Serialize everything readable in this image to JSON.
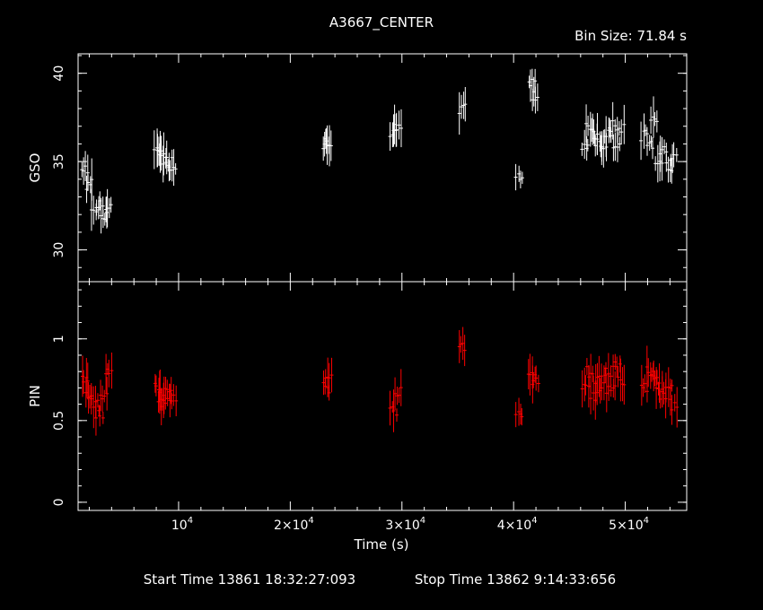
{
  "title": "A3667_CENTER",
  "bin_size": "Bin Size: 71.84 s",
  "footer": {
    "start": "Start Time 13861 18:32:27:093",
    "stop": "Stop Time 13862  9:14:33:656"
  },
  "colors": {
    "background": "#000000",
    "axes": "#ffffff",
    "gso_series": "#ffffff",
    "pin_series": "#ff0000"
  },
  "chart_data": [
    {
      "type": "scatter",
      "name": "gso-panel",
      "ylabel": "GSO",
      "xlim": [
        1000,
        55500
      ],
      "ylim": [
        28.2,
        41.1
      ],
      "y_major_ticks": [
        30,
        35,
        40
      ],
      "y_tick_labels": [
        "30",
        "35",
        "40"
      ],
      "series": [
        {
          "color": "#ffffff",
          "error_bars": true,
          "x": [
            1700,
            2100,
            2600,
            3000,
            3400,
            3800,
            8200,
            8500,
            8800,
            9200,
            9600,
            23300,
            23500,
            29300,
            29700,
            35500,
            40600,
            41700,
            42000,
            46500,
            46900,
            47300,
            47700,
            48100,
            48500,
            48900,
            49300,
            49700,
            51800,
            52300,
            52700,
            53100,
            53500,
            54000,
            54400
          ],
          "y": [
            34.5,
            33.7,
            32.3,
            32.5,
            32.0,
            32.4,
            35.5,
            35.7,
            35.1,
            35.0,
            34.8,
            36.0,
            36.2,
            36.5,
            36.8,
            38.0,
            34.2,
            39.5,
            38.7,
            36.0,
            37.0,
            36.5,
            36.0,
            35.8,
            36.5,
            37.0,
            36.0,
            36.8,
            36.5,
            36.0,
            37.5,
            35.0,
            35.6,
            34.8,
            35.2
          ]
        }
      ]
    },
    {
      "type": "scatter",
      "name": "pin-panel",
      "ylabel": "PIN",
      "xlabel": "Time (s)",
      "xlim": [
        1000,
        55500
      ],
      "ylim": [
        -0.05,
        1.35
      ],
      "y_major_ticks": [
        0,
        0.5,
        1
      ],
      "y_tick_labels": [
        "0",
        "0.5",
        "1"
      ],
      "x_major_ticks": [
        10000,
        20000,
        30000,
        40000,
        50000
      ],
      "x_tick_labels": [
        {
          "mant": "",
          "exp": "4"
        },
        {
          "mant": "2×",
          "exp": "4"
        },
        {
          "mant": "3×",
          "exp": "4"
        },
        {
          "mant": "4×",
          "exp": "4"
        },
        {
          "mant": "5×",
          "exp": "4"
        }
      ],
      "x_tick_base": "10",
      "series": [
        {
          "color": "#ff0000",
          "error_bars": true,
          "x": [
            1700,
            2100,
            2600,
            3000,
            3400,
            3800,
            8200,
            8500,
            8800,
            9200,
            9600,
            23300,
            23500,
            29300,
            29700,
            35500,
            40600,
            41700,
            42000,
            46500,
            46900,
            47300,
            47700,
            48100,
            48500,
            48900,
            49300,
            49700,
            51800,
            52300,
            52700,
            53100,
            53500,
            54000,
            54400
          ],
          "y": [
            0.75,
            0.65,
            0.6,
            0.55,
            0.65,
            0.8,
            0.7,
            0.65,
            0.6,
            0.7,
            0.65,
            0.7,
            0.75,
            0.55,
            0.68,
            0.95,
            0.55,
            0.8,
            0.75,
            0.7,
            0.8,
            0.65,
            0.75,
            0.7,
            0.8,
            0.7,
            0.85,
            0.75,
            0.7,
            0.8,
            0.75,
            0.7,
            0.65,
            0.68,
            0.6
          ]
        }
      ]
    }
  ]
}
